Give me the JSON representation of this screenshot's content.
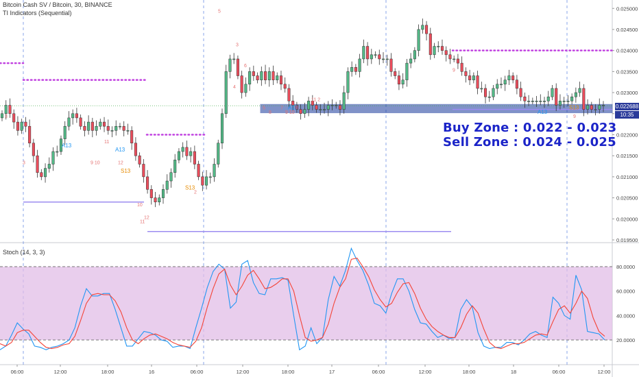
{
  "header": {
    "symbol_line": "Bitcoin Cash SV / Bitcoin, 30, BINANCE",
    "indicator_line": "TI Indicators (Sequential)",
    "stoch_label": "Stoch (14, 3, 3)"
  },
  "price_tags": {
    "last_price": "0.022688",
    "countdown": "10:35"
  },
  "annotations": {
    "buy_zone": "Buy Zone : 0.022 - 0.023",
    "sell_zone": "Sell Zone : 0.024 - 0.025"
  },
  "colors": {
    "up": "#53b987",
    "down": "#eb4d5c",
    "stoch_k": "#2196f3",
    "stoch_d": "#f44336",
    "stoch_band": "#e1bee7",
    "zone": "#1a3a9c",
    "setup_label": "#e57373",
    "count_label": "#2196f3",
    "level_dots": "#c040e0",
    "level_line": "#9c8cf0",
    "annotation": "#1b24c8"
  },
  "chart_data": [
    {
      "type": "candlestick",
      "title": "Bitcoin Cash SV / Bitcoin, 30, BINANCE",
      "ylim": [
        0.0195,
        0.0252
      ],
      "y_ticks": [
        "0.025000",
        "0.024500",
        "0.024000",
        "0.023500",
        "0.023000",
        "0.022500",
        "0.022000",
        "0.021500",
        "0.021000",
        "0.020500",
        "0.020000",
        "0.019500"
      ],
      "x_ticks": [
        "06:00",
        "12:00",
        "18:00",
        "16",
        "06:00",
        "12:00",
        "18:00",
        "17",
        "06:00",
        "12:00",
        "18:00",
        "18",
        "06:00",
        "12:00"
      ],
      "close": [
        0.0225,
        0.0227,
        0.0225,
        0.0223,
        0.0221,
        0.0223,
        0.0222,
        0.0218,
        0.0215,
        0.0211,
        0.021,
        0.0212,
        0.0213,
        0.0216,
        0.0216,
        0.0219,
        0.0222,
        0.0224,
        0.0225,
        0.0224,
        0.0222,
        0.0221,
        0.0223,
        0.0221,
        0.0222,
        0.0223,
        0.0222,
        0.0221,
        0.0221,
        0.0222,
        0.0222,
        0.0221,
        0.0221,
        0.0218,
        0.0215,
        0.0213,
        0.021,
        0.0207,
        0.0205,
        0.0204,
        0.0205,
        0.0207,
        0.0209,
        0.0211,
        0.0214,
        0.0216,
        0.0217,
        0.0215,
        0.0216,
        0.0213,
        0.021,
        0.0208,
        0.021,
        0.021,
        0.0213,
        0.0218,
        0.0225,
        0.0235,
        0.0238,
        0.0238,
        0.0234,
        0.023,
        0.0232,
        0.0235,
        0.0234,
        0.0233,
        0.0235,
        0.0233,
        0.0235,
        0.0233,
        0.0234,
        0.0232,
        0.0231,
        0.0228,
        0.0227,
        0.0226,
        0.0225,
        0.0226,
        0.0228,
        0.0227,
        0.0226,
        0.0226,
        0.0226,
        0.0227,
        0.0227,
        0.0227,
        0.0226,
        0.023,
        0.0235,
        0.0236,
        0.0235,
        0.0238,
        0.0241,
        0.0238,
        0.0239,
        0.0239,
        0.0238,
        0.0238,
        0.0238,
        0.0235,
        0.0234,
        0.0232,
        0.0233,
        0.0237,
        0.0238,
        0.024,
        0.0245,
        0.0246,
        0.0244,
        0.0239,
        0.0241,
        0.0241,
        0.024,
        0.0239,
        0.0238,
        0.0238,
        0.0237,
        0.0235,
        0.0234,
        0.0233,
        0.0234,
        0.0231,
        0.0231,
        0.0229,
        0.0229,
        0.0231,
        0.0232,
        0.0232,
        0.0233,
        0.0234,
        0.0233,
        0.0231,
        0.0229,
        0.0228,
        0.0228,
        0.0228,
        0.0228,
        0.0228,
        0.0228,
        0.0229,
        0.0231,
        0.0227,
        0.0228,
        0.0228,
        0.0228,
        0.0229,
        0.023,
        0.0231,
        0.0226,
        0.0227,
        0.0226,
        0.0226,
        0.0227,
        0.0227
      ]
    },
    {
      "type": "line",
      "title": "Stoch (14, 3, 3)",
      "ylim": [
        10,
        100
      ],
      "y_ticks": [
        "80.0000",
        "60.0000",
        "40.0000",
        "20.0000"
      ],
      "band": [
        20,
        80
      ],
      "series": [
        {
          "name": "%K",
          "values": [
            12,
            15,
            24,
            34,
            29,
            25,
            15,
            14,
            12,
            14,
            15,
            17,
            20,
            30,
            48,
            62,
            56,
            56,
            58,
            58,
            45,
            30,
            15,
            15,
            21,
            27,
            26,
            24,
            20,
            19,
            14,
            15,
            15,
            13,
            30,
            46,
            63,
            76,
            82,
            78,
            46,
            51,
            82,
            85,
            67,
            58,
            57,
            70,
            70,
            71,
            69,
            40,
            12,
            15,
            30,
            17,
            22,
            53,
            72,
            64,
            77,
            95,
            85,
            77,
            65,
            50,
            48,
            42,
            58,
            70,
            70,
            60,
            45,
            34,
            33,
            27,
            22,
            24,
            21,
            22,
            45,
            53,
            47,
            26,
            15,
            13,
            14,
            14,
            18,
            18,
            16,
            20,
            25,
            27,
            24,
            22,
            55,
            50,
            40,
            37,
            73,
            61,
            27,
            26,
            25,
            20
          ]
        },
        {
          "name": "%D",
          "values": [
            17,
            15,
            18,
            26,
            28,
            28,
            23,
            18,
            14,
            13,
            14,
            16,
            17,
            23,
            36,
            50,
            57,
            58,
            57,
            57,
            52,
            43,
            30,
            20,
            17,
            21,
            24,
            25,
            23,
            21,
            18,
            16,
            15,
            14,
            19,
            30,
            47,
            62,
            74,
            78,
            65,
            57,
            64,
            73,
            77,
            70,
            62,
            63,
            66,
            70,
            70,
            60,
            40,
            22,
            19,
            20,
            22,
            33,
            50,
            63,
            70,
            86,
            87,
            80,
            72,
            61,
            53,
            47,
            50,
            59,
            66,
            67,
            58,
            46,
            37,
            31,
            27,
            24,
            22,
            22,
            30,
            41,
            48,
            42,
            29,
            18,
            14,
            13,
            15,
            17,
            17,
            18,
            21,
            24,
            25,
            24,
            35,
            45,
            48,
            42,
            50,
            60,
            54,
            38,
            27,
            23
          ]
        }
      ]
    }
  ]
}
